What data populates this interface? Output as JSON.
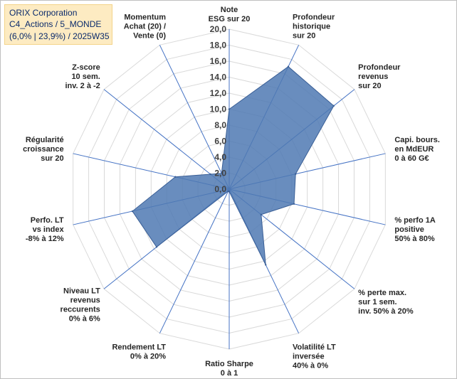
{
  "header": {
    "line1": "ORIX Corporation",
    "line2": "C4_Actions / 5_MONDE",
    "line3": "(6,0% | 23,9%) / 2025W35"
  },
  "colors": {
    "fill": "#4f79b3",
    "stroke": "#3a5f96",
    "grid": "#d9d9d9",
    "axis": "#4472c4"
  },
  "chart_data": {
    "type": "radar",
    "rmin": 0,
    "rmax": 20,
    "tick_step": 2,
    "tick_labels": [
      "0,0",
      "2,0",
      "4,0",
      "6,0",
      "8,0",
      "10,0",
      "12,0",
      "14,0",
      "16,0",
      "18,0",
      "20,0"
    ],
    "axes": [
      {
        "label": [
          "Note",
          "ESG sur 20"
        ],
        "value": 10.0
      },
      {
        "label": [
          "Profondeur",
          "historique",
          "sur 20"
        ],
        "value": 17.0
      },
      {
        "label": [
          "Profondeur",
          "revenus",
          "sur 20"
        ],
        "value": 16.7
      },
      {
        "label": [
          "Capi. bours.",
          "en MdEUR",
          "0 à 60 G€"
        ],
        "value": 8.5
      },
      {
        "label": [
          "% perfo 1A",
          "positive",
          "50% à 80%"
        ],
        "value": 8.3
      },
      {
        "label": [
          "% perte max.",
          "sur 1 sem.",
          "inv. 50% à 20%"
        ],
        "value": 5.1
      },
      {
        "label": [
          "Volatilité LT",
          "inversée",
          "40% à 0%"
        ],
        "value": 10.5
      },
      {
        "label": [
          "Ratio Sharpe",
          "0 à 1"
        ],
        "value": 0.3
      },
      {
        "label": [
          "Rendement LT",
          "0% à 20%"
        ],
        "value": 0.3
      },
      {
        "label": [
          "Niveau LT",
          "revenus",
          "reccurents",
          "0% à 6%"
        ],
        "value": 11.6
      },
      {
        "label": [
          "Perfo. LT",
          "vs index",
          "-8% à 12%"
        ],
        "value": 12.4
      },
      {
        "label": [
          "Régularité",
          "croissance",
          "sur 20"
        ],
        "value": 6.9
      },
      {
        "label": [
          "Z-score",
          "10 sem.",
          "inv. 2 à -2"
        ],
        "value": 3.0
      },
      {
        "label": [
          "Momentum",
          "Achat (20) /",
          "Vente (0)"
        ],
        "value": 2.2
      }
    ]
  }
}
